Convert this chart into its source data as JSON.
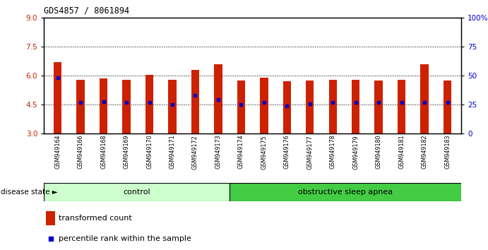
{
  "title": "GDS4857 / 8061894",
  "samples": [
    "GSM949164",
    "GSM949166",
    "GSM949168",
    "GSM949169",
    "GSM949170",
    "GSM949171",
    "GSM949172",
    "GSM949173",
    "GSM949174",
    "GSM949175",
    "GSM949176",
    "GSM949177",
    "GSM949178",
    "GSM949179",
    "GSM949180",
    "GSM949181",
    "GSM949182",
    "GSM949183"
  ],
  "bar_tops": [
    6.7,
    5.8,
    5.85,
    5.8,
    6.05,
    5.8,
    6.3,
    6.6,
    5.75,
    5.9,
    5.7,
    5.75,
    5.8,
    5.8,
    5.75,
    5.8,
    6.6,
    5.75
  ],
  "blue_dots": [
    5.9,
    4.6,
    4.65,
    4.6,
    4.6,
    4.5,
    5.0,
    4.75,
    4.5,
    4.6,
    4.45,
    4.55,
    4.6,
    4.6,
    4.6,
    4.6,
    4.6,
    4.6
  ],
  "bar_bottom": 3.0,
  "ylim": [
    3.0,
    9.0
  ],
  "yticks_left": [
    3,
    4.5,
    6,
    7.5,
    9
  ],
  "yticks_right": [
    0,
    25,
    50,
    75,
    100
  ],
  "bar_color": "#cc2200",
  "dot_color": "#0000cc",
  "background_color": "#ffffff",
  "grid_color": "#000000",
  "control_color": "#ccffcc",
  "apnea_color": "#44cc44",
  "n_control": 8,
  "n_apnea": 10,
  "control_label": "control",
  "apnea_label": "obstructive sleep apnea",
  "disease_state_label": "disease state",
  "legend_bar_label": "transformed count",
  "legend_dot_label": "percentile rank within the sample",
  "bar_width": 0.35,
  "right_yaxis_color": "#0000cc",
  "left_yaxis_color": "#cc2200"
}
